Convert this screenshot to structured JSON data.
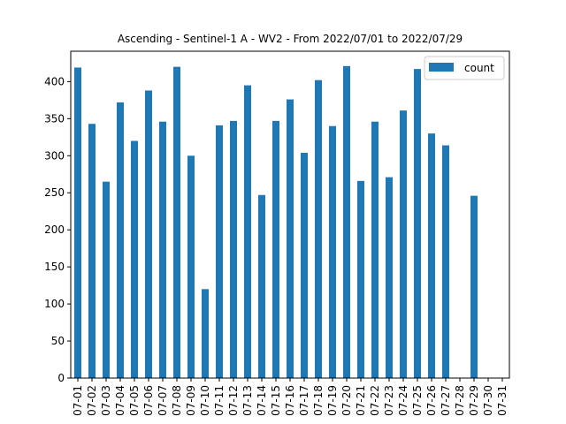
{
  "chart_data": {
    "type": "bar",
    "title": "Ascending - Sentinel-1 A - WV2 - From 2022/07/01 to 2022/07/29",
    "xlabel": "",
    "ylabel": "",
    "categories": [
      "07-01",
      "07-02",
      "07-03",
      "07-04",
      "07-05",
      "07-06",
      "07-07",
      "07-08",
      "07-09",
      "07-10",
      "07-11",
      "07-12",
      "07-13",
      "07-14",
      "07-15",
      "07-16",
      "07-17",
      "07-18",
      "07-19",
      "07-20",
      "07-21",
      "07-22",
      "07-23",
      "07-24",
      "07-25",
      "07-26",
      "07-27",
      "07-28",
      "07-29",
      "07-30",
      "07-31"
    ],
    "series": [
      {
        "name": "count",
        "color": "#1f77b4",
        "values": [
          419,
          343,
          265,
          372,
          320,
          388,
          346,
          420,
          300,
          120,
          341,
          347,
          395,
          247,
          347,
          376,
          304,
          402,
          340,
          421,
          266,
          346,
          271,
          361,
          417,
          330,
          314,
          0,
          246,
          0,
          0
        ]
      }
    ],
    "yticks": [
      0,
      50,
      100,
      150,
      200,
      250,
      300,
      350,
      400
    ],
    "ylim": [
      0,
      441
    ],
    "grid": false,
    "legend_position": "top-right"
  }
}
